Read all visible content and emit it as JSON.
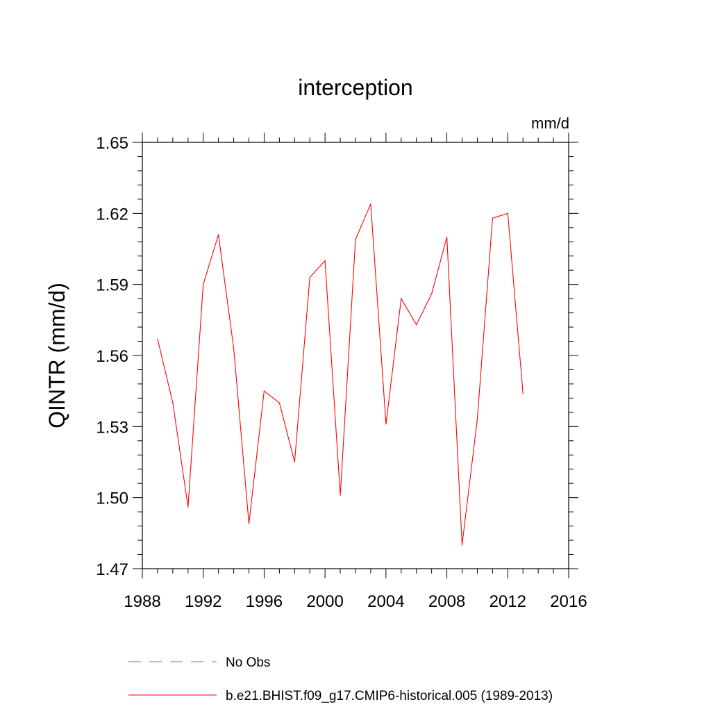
{
  "chart_data": {
    "type": "line",
    "title": "interception",
    "units_label": "mm/d",
    "xlabel": "",
    "ylabel": "QINTR  (mm/d)",
    "xlim": [
      1988,
      2016
    ],
    "ylim": [
      1.47,
      1.65
    ],
    "x_ticks": [
      1988,
      1992,
      1996,
      2000,
      2004,
      2008,
      2012,
      2016
    ],
    "y_ticks": [
      1.47,
      1.5,
      1.53,
      1.56,
      1.59,
      1.62,
      1.65
    ],
    "y_tick_labels": [
      "1.47",
      "1.50",
      "1.53",
      "1.56",
      "1.59",
      "1.62",
      "1.65"
    ],
    "grid": false,
    "legend_position": "bottom",
    "series": [
      {
        "name": "No Obs",
        "color": "#7b68c8",
        "style": "dashed",
        "x": [],
        "values": []
      },
      {
        "name": "b.e21.BHIST.f09_g17.CMIP6-historical.005 (1989-2013)",
        "color": "#ff0000",
        "style": "solid",
        "x": [
          1989,
          1990,
          1991,
          1992,
          1993,
          1994,
          1995,
          1996,
          1997,
          1998,
          1999,
          2000,
          2001,
          2002,
          2003,
          2004,
          2005,
          2006,
          2007,
          2008,
          2009,
          2010,
          2011,
          2012,
          2013
        ],
        "values": [
          1.567,
          1.54,
          1.496,
          1.59,
          1.611,
          1.563,
          1.489,
          1.545,
          1.54,
          1.515,
          1.593,
          1.6,
          1.501,
          1.609,
          1.624,
          1.531,
          1.584,
          1.573,
          1.586,
          1.61,
          1.48,
          1.533,
          1.618,
          1.62,
          1.544
        ]
      }
    ]
  }
}
